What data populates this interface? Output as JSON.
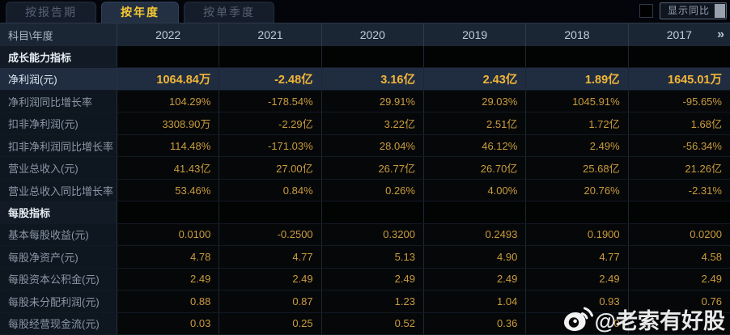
{
  "tabs": [
    {
      "label": "按报告期",
      "active": false
    },
    {
      "label": "按年度",
      "active": true
    },
    {
      "label": "按单季度",
      "active": false
    }
  ],
  "controls": {
    "show_yoy_label": "显示同比"
  },
  "table": {
    "corner_label": "科目\\年度",
    "years": [
      "2022",
      "2021",
      "2020",
      "2019",
      "2018",
      "2017"
    ],
    "next_arrow": "»",
    "rows": [
      {
        "type": "section",
        "label": "成长能力指标",
        "values": [
          "",
          "",
          "",
          "",
          "",
          ""
        ]
      },
      {
        "type": "highlight",
        "label": "净利润(元)",
        "values": [
          "1064.84万",
          "-2.48亿",
          "3.16亿",
          "2.43亿",
          "1.89亿",
          "1645.01万"
        ]
      },
      {
        "type": "data",
        "label": "净利润同比增长率",
        "values": [
          "104.29%",
          "-178.54%",
          "29.91%",
          "29.03%",
          "1045.91%",
          "-95.65%"
        ]
      },
      {
        "type": "data",
        "label": "扣非净利润(元)",
        "values": [
          "3308.90万",
          "-2.29亿",
          "3.22亿",
          "2.51亿",
          "1.72亿",
          "1.68亿"
        ]
      },
      {
        "type": "data",
        "label": "扣非净利润同比增长率",
        "values": [
          "114.48%",
          "-171.03%",
          "28.04%",
          "46.12%",
          "2.49%",
          "-56.34%"
        ]
      },
      {
        "type": "data",
        "label": "营业总收入(元)",
        "values": [
          "41.43亿",
          "27.00亿",
          "26.77亿",
          "26.70亿",
          "25.68亿",
          "21.26亿"
        ]
      },
      {
        "type": "data",
        "label": "营业总收入同比增长率",
        "values": [
          "53.46%",
          "0.84%",
          "0.26%",
          "4.00%",
          "20.76%",
          "-2.31%"
        ]
      },
      {
        "type": "section",
        "label": "每股指标",
        "values": [
          "",
          "",
          "",
          "",
          "",
          ""
        ]
      },
      {
        "type": "data",
        "label": "基本每股收益(元)",
        "values": [
          "0.0100",
          "-0.2500",
          "0.3200",
          "0.2493",
          "0.1900",
          "0.0200"
        ]
      },
      {
        "type": "data",
        "label": "每股净资产(元)",
        "values": [
          "4.78",
          "4.77",
          "5.13",
          "4.90",
          "4.77",
          "4.58"
        ]
      },
      {
        "type": "data",
        "label": "每股资本公积金(元)",
        "values": [
          "2.49",
          "2.49",
          "2.49",
          "2.49",
          "2.49",
          "2.49"
        ]
      },
      {
        "type": "data",
        "label": "每股未分配利润(元)",
        "values": [
          "0.88",
          "0.87",
          "1.23",
          "1.04",
          "0.93",
          "0.76"
        ]
      },
      {
        "type": "data",
        "label": "每股经营现金流(元)",
        "values": [
          "0.03",
          "0.25",
          "0.52",
          "0.36",
          "0",
          ""
        ]
      }
    ]
  },
  "watermark": {
    "icon": "weibo-icon",
    "text": "@老索有好股"
  },
  "colors": {
    "accent-gold": "#c99c3e",
    "highlight-gold": "#f2b636",
    "highlight-row-bg": "#202d41",
    "header-bg": "#1b2634",
    "tab-active-text": "#f5c832",
    "label-text": "#8b97a6",
    "section-text": "#e6ecf2"
  }
}
